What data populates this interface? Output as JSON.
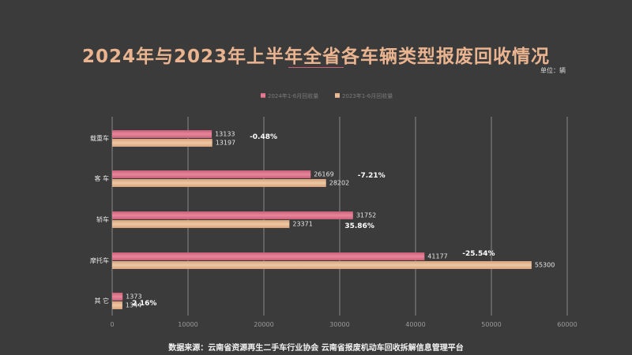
{
  "header": {
    "title": "2024年与2023年上半年全省各车辆类型报废回收情况",
    "unit": "单位：辆"
  },
  "footer": {
    "source": "数据来源：云南省资源再生二手车行业协会      云南省报废机动车回收拆解信息管理平台"
  },
  "colors": {
    "background": "#3b3b3b",
    "title": "#e9b48f",
    "series_2024": "#e7879c",
    "series_2023": "#eec7a3",
    "grid": "#8a8a8a",
    "text": "#e6e6e6"
  },
  "chart_data": {
    "type": "bar",
    "orientation": "horizontal",
    "categories": [
      "载重车",
      "客 车",
      "轿车",
      "摩托车",
      "其 它"
    ],
    "series": [
      {
        "name": "2024年1-6月回收量",
        "values": [
          13133,
          26169,
          31752,
          41177,
          1373
        ]
      },
      {
        "name": "2023年1-6月回收量",
        "values": [
          13197,
          28202,
          23371,
          55300,
          1344
        ]
      }
    ],
    "annotations": [
      "-0.48%",
      "-7.21%",
      "35.86%",
      "-25.54%",
      "2.16%"
    ],
    "xlim": [
      0,
      60000
    ],
    "xticks": [
      0,
      10000,
      20000,
      30000,
      40000,
      50000,
      60000
    ],
    "grid": true,
    "legend_position": "top-center"
  }
}
